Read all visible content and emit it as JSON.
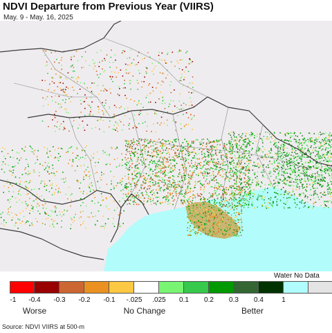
{
  "title": "NDVI Departure from Previous Year (VIIRS)",
  "subtitle": "May. 9 - May. 16, 2025",
  "source": "Source: NDVI VIIRS at 500-m",
  "legend": {
    "special_label": "Water No Data",
    "colors": [
      "#fe0000",
      "#990000",
      "#cc6633",
      "#ea9121",
      "#fdc843",
      "#ffffff",
      "#79f573",
      "#36c94c",
      "#009900",
      "#336633",
      "#003300",
      "#b1fcfc",
      "#e4e4e4"
    ],
    "ticks": [
      "-1",
      "-0.4",
      "-0.3",
      "-0.2",
      "-0.1",
      "-.025",
      ".025",
      "0.1",
      "0.2",
      "0.3",
      "0.4",
      "1"
    ],
    "categories": [
      "Worse",
      "No Change",
      "Better"
    ]
  },
  "map_colors": {
    "land": "#efecef",
    "sea": "#b2fcfc",
    "border": "#7a7a7a",
    "country_border": "#3a3a3a"
  }
}
